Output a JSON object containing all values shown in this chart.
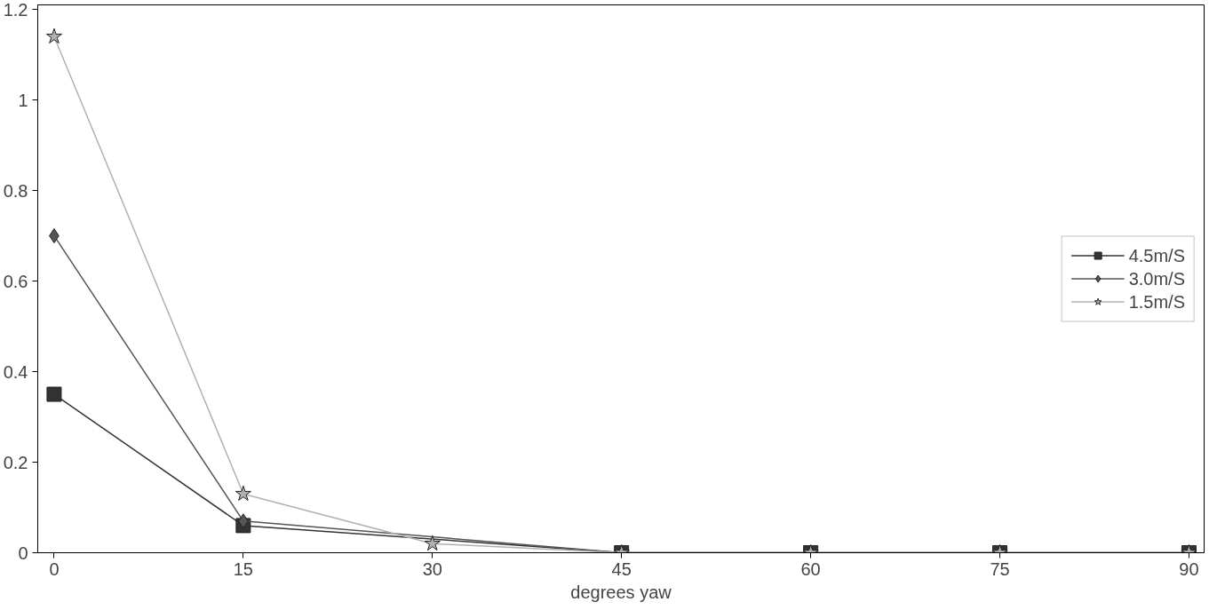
{
  "chart_data": {
    "type": "line",
    "xlabel": "degrees yaw",
    "x": [
      0,
      15,
      30,
      45,
      60,
      75,
      90
    ],
    "series": [
      {
        "name": "4.5m/S",
        "color": "#333333",
        "marker": "square",
        "values": [
          0.35,
          0.06,
          null,
          0,
          0,
          0,
          0
        ]
      },
      {
        "name": "3.0m/S",
        "color": "#555555",
        "marker": "diamond",
        "values": [
          0.7,
          0.07,
          null,
          0,
          0,
          0,
          0
        ]
      },
      {
        "name": "1.5m/S",
        "color": "#b0b0b0",
        "marker": "star",
        "values": [
          1.14,
          0.13,
          0.02,
          0,
          0,
          0,
          0
        ]
      }
    ],
    "xlim": [
      -1.3,
      91.2
    ],
    "xticks": [
      0,
      15,
      30,
      45,
      60,
      75,
      90
    ],
    "ylim": [
      0,
      1.21
    ],
    "yticks": [
      0,
      0.2,
      0.4,
      0.6,
      0.8,
      1,
      1.2
    ],
    "grid": false,
    "legend": "right",
    "line_style": "solid"
  }
}
